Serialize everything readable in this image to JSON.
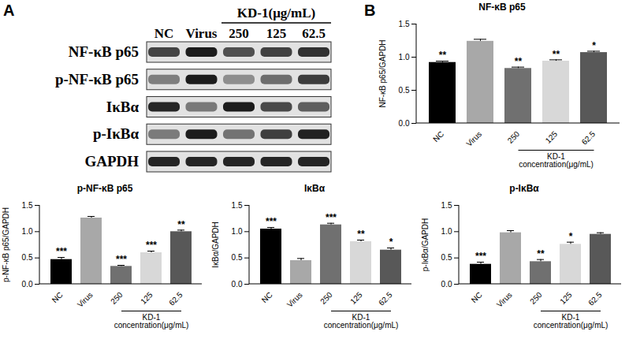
{
  "panels": [
    "A",
    "B"
  ],
  "blot": {
    "lanes": [
      "NC",
      "Virus",
      "250",
      "125",
      "62.5"
    ],
    "group": {
      "label": "KD-1(μg/mL)",
      "lanes": [
        "250",
        "125",
        "62.5"
      ]
    },
    "rows": [
      "NF-κB p65",
      "p-NF-κB p65",
      "IκBα",
      "p-IκBα",
      "GAPDH"
    ]
  },
  "chart_data": [
    {
      "type": "bar",
      "title": "NF-κB p65",
      "y_label": "NF-κB p65/GAPDH",
      "categories": [
        "NC",
        "Virus",
        "250",
        "125",
        "62.5"
      ],
      "values": [
        0.92,
        1.24,
        0.83,
        0.94,
        1.07
      ],
      "errors": [
        0.02,
        0.03,
        0.02,
        0.02,
        0.02
      ],
      "annotations": [
        "**",
        null,
        "**",
        "**",
        "*"
      ],
      "colors": [
        "#000000",
        "#a8a8a8",
        "#707070",
        "#d8d8d8",
        "#585858"
      ],
      "ylim": [
        0,
        1.5
      ],
      "yticks": [
        {
          "value": 0,
          "label": "0.0"
        },
        {
          "value": 0.5,
          "label": "0.5"
        },
        {
          "value": 1,
          "label": "1.0"
        },
        {
          "value": 1.5,
          "label": "1.5"
        }
      ],
      "group": {
        "label": "KD-1\nconcentration(μg/mL)",
        "categories": [
          "250",
          "125",
          "62.5"
        ]
      }
    },
    {
      "type": "bar",
      "title": "p-NF-κB p65",
      "y_label": "p-NF-κB p65/GAPDH",
      "categories": [
        "NC",
        "Virus",
        "250",
        "125",
        "62.5"
      ],
      "values": [
        0.47,
        1.26,
        0.34,
        0.6,
        1.0
      ],
      "errors": [
        0.04,
        0.03,
        0.02,
        0.03,
        0.03
      ],
      "annotations": [
        "***",
        null,
        "***",
        "***",
        "**"
      ],
      "colors": [
        "#000000",
        "#a8a8a8",
        "#707070",
        "#d8d8d8",
        "#585858"
      ],
      "ylim": [
        0,
        1.5
      ],
      "yticks": [
        {
          "value": 0,
          "label": "0.0"
        },
        {
          "value": 0.5,
          "label": "0.5"
        },
        {
          "value": 1,
          "label": "1.0"
        },
        {
          "value": 1.5,
          "label": "1.5"
        }
      ],
      "group": {
        "label": "KD-1\nconcentration(μg/mL)",
        "categories": [
          "250",
          "125",
          "62.5"
        ]
      }
    },
    {
      "type": "bar",
      "title": "IκBα",
      "y_label": "IκBα/GAPDH",
      "categories": [
        "NC",
        "Virus",
        "250",
        "125",
        "62.5"
      ],
      "values": [
        1.05,
        0.45,
        1.13,
        0.81,
        0.65
      ],
      "errors": [
        0.03,
        0.04,
        0.03,
        0.03,
        0.04
      ],
      "annotations": [
        "***",
        null,
        "***",
        "**",
        "*"
      ],
      "colors": [
        "#000000",
        "#a8a8a8",
        "#707070",
        "#d8d8d8",
        "#585858"
      ],
      "ylim": [
        0,
        1.5
      ],
      "yticks": [
        {
          "value": 0,
          "label": "0.0"
        },
        {
          "value": 0.5,
          "label": "0.5"
        },
        {
          "value": 1,
          "label": "1.0"
        },
        {
          "value": 1.5,
          "label": "1.5"
        }
      ],
      "group": {
        "label": "KD-1\nconcentration(μg/mL)",
        "categories": [
          "250",
          "125",
          "62.5"
        ]
      }
    },
    {
      "type": "bar",
      "title": "p-IκBα",
      "y_label": "p-IκBα/GAPDH",
      "categories": [
        "NC",
        "Virus",
        "250",
        "125",
        "62.5"
      ],
      "values": [
        0.38,
        0.98,
        0.43,
        0.76,
        0.95
      ],
      "errors": [
        0.04,
        0.04,
        0.04,
        0.04,
        0.03
      ],
      "annotations": [
        "***",
        null,
        "**",
        "*",
        null
      ],
      "colors": [
        "#000000",
        "#a8a8a8",
        "#707070",
        "#d8d8d8",
        "#585858"
      ],
      "ylim": [
        0,
        1.5
      ],
      "yticks": [
        {
          "value": 0,
          "label": "0.0"
        },
        {
          "value": 0.5,
          "label": "0.5"
        },
        {
          "value": 1,
          "label": "1.0"
        },
        {
          "value": 1.5,
          "label": "1.5"
        }
      ],
      "group": {
        "label": "KD-1\nconcentration(μg/mL)",
        "categories": [
          "250",
          "125",
          "62.5"
        ]
      }
    }
  ]
}
